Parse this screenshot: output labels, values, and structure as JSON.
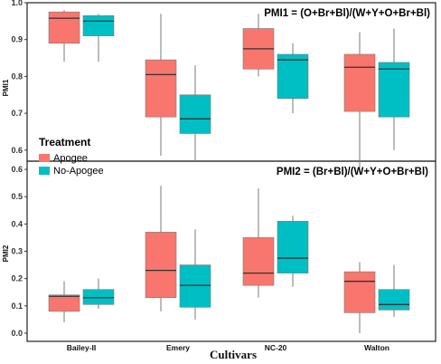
{
  "chart_data": [
    {
      "type": "boxplot",
      "title": "PMI1 = (O+Br+Bl)/(W+Y+O+Br+Bl)",
      "ylabel": "PMI1",
      "xlabel": "Cultivars",
      "ylim": [
        0.57,
        1.0
      ],
      "yticks": [
        0.6,
        0.7,
        0.8,
        0.9,
        1.0
      ],
      "categories": [
        "Bailey-II",
        "Emery",
        "NC-20",
        "Walton"
      ],
      "legend": {
        "title": "Treatment",
        "position": "bottom-left"
      },
      "series": [
        {
          "name": "Apogee",
          "color": "#F8766D",
          "boxes": [
            {
              "min": 0.84,
              "q1": 0.89,
              "median": 0.958,
              "q3": 0.975,
              "max": 0.98
            },
            {
              "min": 0.585,
              "q1": 0.69,
              "median": 0.805,
              "q3": 0.845,
              "max": 0.97
            },
            {
              "min": 0.8,
              "q1": 0.82,
              "median": 0.875,
              "q3": 0.93,
              "max": 0.97
            },
            {
              "min": 0.54,
              "q1": 0.705,
              "median": 0.825,
              "q3": 0.86,
              "max": 0.92
            }
          ]
        },
        {
          "name": "No-Apogee",
          "color": "#00BFC4",
          "boxes": [
            {
              "min": 0.84,
              "q1": 0.91,
              "median": 0.95,
              "q3": 0.965,
              "max": 0.97
            },
            {
              "min": 0.57,
              "q1": 0.645,
              "median": 0.685,
              "q3": 0.75,
              "max": 0.83
            },
            {
              "min": 0.7,
              "q1": 0.74,
              "median": 0.845,
              "q3": 0.86,
              "max": 0.89
            },
            {
              "min": 0.6,
              "q1": 0.69,
              "median": 0.82,
              "q3": 0.838,
              "max": 0.93
            }
          ]
        }
      ]
    },
    {
      "type": "boxplot",
      "title": "PMI2 = (Br+Bl)/(W+Y+O+Br+Bl)",
      "ylabel": "PMI2",
      "xlabel": "Cultivars",
      "ylim": [
        -0.03,
        0.63
      ],
      "yticks": [
        0.0,
        0.1,
        0.2,
        0.3,
        0.4,
        0.5,
        0.6
      ],
      "categories": [
        "Bailey-II",
        "Emery",
        "NC-20",
        "Walton"
      ],
      "legend": {
        "title": "Treatment",
        "position": "top-left"
      },
      "series": [
        {
          "name": "Apogee",
          "color": "#F8766D",
          "boxes": [
            {
              "min": 0.04,
              "q1": 0.08,
              "median": 0.135,
              "q3": 0.14,
              "max": 0.19
            },
            {
              "min": 0.08,
              "q1": 0.13,
              "median": 0.23,
              "q3": 0.37,
              "max": 0.54
            },
            {
              "min": 0.13,
              "q1": 0.175,
              "median": 0.22,
              "q3": 0.35,
              "max": 0.53
            },
            {
              "min": 0.0,
              "q1": 0.075,
              "median": 0.19,
              "q3": 0.225,
              "max": 0.26
            }
          ]
        },
        {
          "name": "No-Apogee",
          "color": "#00BFC4",
          "boxes": [
            {
              "min": 0.09,
              "q1": 0.105,
              "median": 0.13,
              "q3": 0.16,
              "max": 0.2
            },
            {
              "min": 0.05,
              "q1": 0.095,
              "median": 0.175,
              "q3": 0.25,
              "max": 0.38
            },
            {
              "min": 0.17,
              "q1": 0.22,
              "median": 0.275,
              "q3": 0.41,
              "max": 0.43
            },
            {
              "min": 0.06,
              "q1": 0.085,
              "median": 0.105,
              "q3": 0.16,
              "max": 0.25
            }
          ]
        }
      ]
    }
  ]
}
